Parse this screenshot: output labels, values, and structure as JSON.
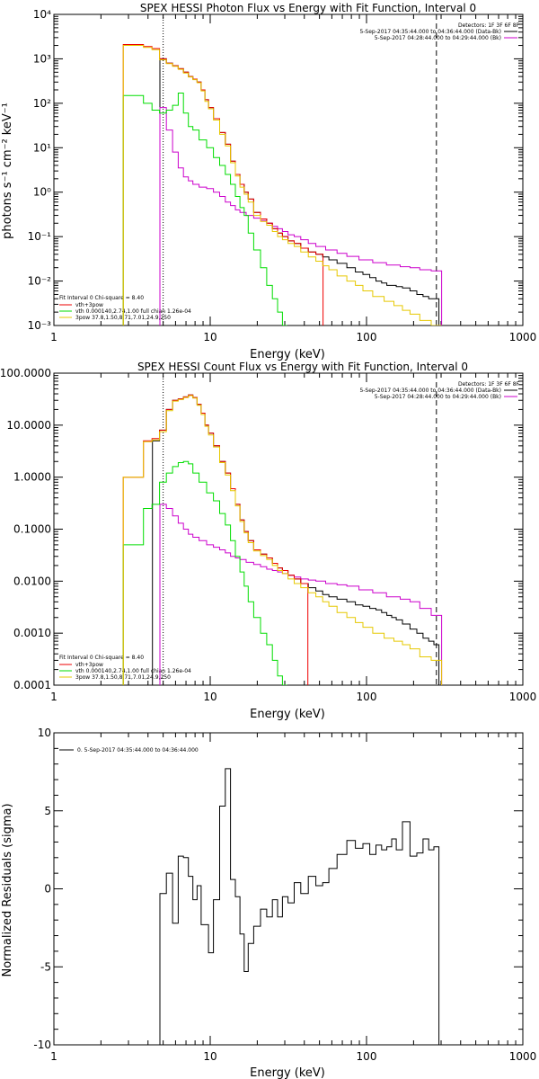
{
  "chart_data": [
    {
      "type": "line",
      "title": "SPEX HESSI Photon Flux vs Energy with Fit Function, Interval 0",
      "xlabel": "Energy (keV)",
      "ylabel": "photons s⁻¹ cm⁻² keV⁻¹",
      "xscale": "log",
      "yscale": "log",
      "xlim": [
        1,
        1000
      ],
      "ylim": [
        0.001,
        10000
      ],
      "xticks": [
        "1",
        "10",
        "100",
        "1000"
      ],
      "yticks": [
        "10⁻³",
        "10⁻²",
        "10⁻¹",
        "10⁰",
        "10¹",
        "10²",
        "10³",
        "10⁴"
      ],
      "vlines": [
        {
          "x": 5,
          "style": "dotted"
        },
        {
          "x": 280,
          "style": "dashed"
        }
      ],
      "legend_topright": [
        "Detectors: 1F 3F 6F 8F",
        "5-Sep-2017 04:35:44.000 to 04:36:44.000 (Data-Bk)",
        "5-Sep-2017 04:28:44.000 to 04:29:44.000 (Bk)"
      ],
      "legend_bottomleft": [
        "Fit Interval 0   Chi-square = 8.40",
        "vth+3pow",
        "vth 0.000140,2.74,1.00  full chian 1.26e-04",
        "3pow 37.8,1.50,8.71,7.01,24.9,250"
      ],
      "series": [
        {
          "name": "Data-Bk",
          "color": "#000000",
          "x": [
            5,
            5.5,
            6,
            6.5,
            7,
            7.5,
            8,
            8.5,
            9,
            9.5,
            10,
            11,
            12,
            13,
            14,
            15,
            16,
            17,
            18,
            20,
            22,
            24,
            26,
            28,
            30,
            33,
            36,
            40,
            45,
            50,
            55,
            60,
            70,
            80,
            90,
            100,
            110,
            120,
            130,
            140,
            150,
            160,
            180,
            200,
            220,
            240,
            260,
            280
          ],
          "values": [
            1000,
            800,
            700,
            600,
            500,
            400,
            350,
            300,
            200,
            120,
            80,
            45,
            22,
            12,
            5,
            2.5,
            1.5,
            1.0,
            0.7,
            0.35,
            0.25,
            0.2,
            0.15,
            0.12,
            0.1,
            0.08,
            0.07,
            0.055,
            0.045,
            0.04,
            0.035,
            0.03,
            0.025,
            0.02,
            0.016,
            0.014,
            0.012,
            0.01,
            0.009,
            0.008,
            0.008,
            0.0075,
            0.007,
            0.006,
            0.005,
            0.0045,
            0.004,
            0.004
          ]
        },
        {
          "name": "Bk",
          "color": "#cc00cc",
          "x": [
            5,
            5.5,
            6,
            6.5,
            7,
            7.5,
            8,
            9,
            10,
            11,
            12,
            13,
            14,
            15,
            16,
            18,
            20,
            22,
            24,
            26,
            28,
            30,
            33,
            36,
            40,
            45,
            50,
            60,
            70,
            80,
            100,
            120,
            150,
            180,
            200,
            240,
            280
          ],
          "values": [
            80,
            25,
            8,
            3.5,
            2.2,
            1.8,
            1.5,
            1.3,
            1.2,
            1.0,
            0.8,
            0.6,
            0.5,
            0.4,
            0.35,
            0.3,
            0.26,
            0.23,
            0.2,
            0.17,
            0.15,
            0.13,
            0.11,
            0.1,
            0.085,
            0.07,
            0.06,
            0.05,
            0.042,
            0.036,
            0.03,
            0.026,
            0.023,
            0.021,
            0.02,
            0.018,
            0.017
          ]
        },
        {
          "name": "vth+3pow",
          "color": "#ee0000",
          "x": [
            3,
            3.5,
            4,
            4.5,
            5,
            5.5,
            6,
            6.5,
            7,
            7.5,
            8,
            8.5,
            9,
            9.5,
            10,
            11,
            12,
            13,
            14,
            15,
            16,
            17,
            18,
            20,
            22,
            24,
            26,
            28,
            30,
            33,
            36,
            40,
            45,
            50
          ],
          "values": [
            2100,
            2100,
            1900,
            1700,
            1000,
            800,
            700,
            600,
            500,
            400,
            350,
            300,
            200,
            120,
            80,
            45,
            22,
            12,
            5,
            2.5,
            1.5,
            1.0,
            0.7,
            0.35,
            0.25,
            0.2,
            0.15,
            0.12,
            0.1,
            0.08,
            0.07,
            0.055,
            0.045,
            0.04
          ]
        },
        {
          "name": "vth",
          "color": "#00dd00",
          "x": [
            3,
            3.5,
            4,
            4.5,
            5,
            5.5,
            6,
            6.5,
            7,
            7.5,
            8,
            9,
            10,
            11,
            12,
            13,
            14,
            15,
            16,
            17,
            18,
            20,
            22,
            24,
            26,
            28,
            30
          ],
          "values": [
            150,
            150,
            100,
            70,
            60,
            70,
            90,
            170,
            60,
            30,
            25,
            15,
            10,
            6,
            4,
            2.5,
            1.5,
            0.8,
            0.45,
            0.3,
            0.12,
            0.05,
            0.02,
            0.008,
            0.004,
            0.002,
            0.001
          ]
        },
        {
          "name": "3pow",
          "color": "#e6c800",
          "x": [
            3,
            3.5,
            4,
            4.5,
            5,
            5.5,
            6,
            6.5,
            7,
            7.5,
            8,
            8.5,
            9,
            9.5,
            10,
            11,
            12,
            13,
            14,
            15,
            16,
            17,
            18,
            20,
            22,
            24,
            26,
            28,
            30,
            33,
            36,
            40,
            45,
            50,
            55,
            60,
            70,
            80,
            90,
            100,
            120,
            140,
            160,
            180,
            200,
            240,
            280
          ],
          "values": [
            2000,
            2000,
            1800,
            1600,
            950,
            780,
            680,
            580,
            480,
            390,
            340,
            290,
            190,
            110,
            75,
            42,
            20,
            11,
            4.6,
            2.3,
            1.3,
            0.9,
            0.6,
            0.3,
            0.22,
            0.18,
            0.13,
            0.1,
            0.085,
            0.07,
            0.06,
            0.045,
            0.035,
            0.028,
            0.022,
            0.018,
            0.013,
            0.01,
            0.008,
            0.006,
            0.0045,
            0.0035,
            0.0028,
            0.0022,
            0.0018,
            0.0013,
            0.001
          ]
        }
      ]
    },
    {
      "type": "line",
      "title": "SPEX HESSI Count Flux vs Energy with Fit Function, Interval 0",
      "xlabel": "Energy (keV)",
      "ylabel": "",
      "xscale": "log",
      "yscale": "log",
      "xlim": [
        1,
        1000
      ],
      "ylim": [
        0.0001,
        100
      ],
      "xticks": [
        "1",
        "10",
        "100",
        "1000"
      ],
      "yticks": [
        "0.0001",
        "0.0010",
        "0.0100",
        "0.1000",
        "1.0000",
        "10.0000",
        "100.0000"
      ],
      "vlines": [
        {
          "x": 5,
          "style": "dotted"
        },
        {
          "x": 280,
          "style": "dashed"
        }
      ],
      "legend_topright": [
        "Detectors: 1F 3F 6F 8F",
        "5-Sep-2017 04:35:44.000 to 04:36:44.000 (Data-Bk)",
        "5-Sep-2017 04:28:44.000 to 04:29:44.000 (Bk)"
      ],
      "legend_bottomleft": [
        "Fit Interval 0   Chi-square = 8.40",
        "vth+3pow",
        "vth 0.000140,2.74,1.00  full chian 1.26e-04",
        "3pow 37.8,1.50,8.71,7.01,24.9,250"
      ],
      "series": [
        {
          "name": "Data-Bk",
          "color": "#000000",
          "x": [
            4.5,
            5,
            5.5,
            6,
            6.5,
            7,
            7.5,
            8,
            8.5,
            9,
            9.5,
            10,
            11,
            12,
            13,
            14,
            15,
            16,
            17,
            18,
            20,
            22,
            24,
            26,
            28,
            30,
            33,
            36,
            40,
            45,
            50,
            55,
            60,
            70,
            80,
            90,
            100,
            110,
            120,
            130,
            140,
            150,
            160,
            180,
            200,
            220,
            240,
            260,
            280
          ],
          "values": [
            5,
            8,
            20,
            30,
            32,
            35,
            38,
            34,
            25,
            17,
            10,
            7,
            4,
            2,
            1.2,
            0.6,
            0.3,
            0.15,
            0.09,
            0.06,
            0.04,
            0.033,
            0.028,
            0.022,
            0.018,
            0.016,
            0.013,
            0.011,
            0.009,
            0.0075,
            0.0065,
            0.0055,
            0.005,
            0.0045,
            0.004,
            0.0035,
            0.0033,
            0.003,
            0.0028,
            0.0025,
            0.0022,
            0.002,
            0.0018,
            0.0015,
            0.0012,
            0.001,
            0.0008,
            0.0007,
            0.0006
          ]
        },
        {
          "name": "Bk",
          "color": "#cc00cc",
          "x": [
            5,
            5.5,
            6,
            6.5,
            7,
            7.5,
            8,
            9,
            10,
            11,
            12,
            13,
            14,
            15,
            16,
            18,
            20,
            22,
            24,
            26,
            28,
            30,
            33,
            36,
            40,
            45,
            50,
            60,
            70,
            80,
            100,
            120,
            150,
            180,
            200,
            240,
            280
          ],
          "values": [
            0.3,
            0.25,
            0.18,
            0.13,
            0.1,
            0.08,
            0.07,
            0.06,
            0.05,
            0.045,
            0.04,
            0.035,
            0.03,
            0.028,
            0.026,
            0.023,
            0.021,
            0.019,
            0.017,
            0.016,
            0.015,
            0.014,
            0.013,
            0.012,
            0.011,
            0.0105,
            0.01,
            0.009,
            0.0085,
            0.008,
            0.0068,
            0.006,
            0.005,
            0.0045,
            0.004,
            0.003,
            0.0022
          ]
        },
        {
          "name": "vth+3pow",
          "color": "#ee0000",
          "x": [
            3,
            3.5,
            4,
            4.5,
            5,
            5.5,
            6,
            6.5,
            7,
            7.5,
            8,
            8.5,
            9,
            9.5,
            10,
            11,
            12,
            13,
            14,
            15,
            16,
            17,
            18,
            20,
            22,
            24,
            26,
            28,
            30,
            33,
            36,
            40
          ],
          "values": [
            1.0,
            1.0,
            5.0,
            5.5,
            8,
            20,
            30,
            32,
            35,
            38,
            34,
            25,
            17,
            10,
            7,
            4,
            2,
            1.2,
            0.6,
            0.3,
            0.15,
            0.09,
            0.06,
            0.04,
            0.033,
            0.028,
            0.022,
            0.018,
            0.016,
            0.013,
            0.011,
            0.009
          ]
        },
        {
          "name": "vth",
          "color": "#00dd00",
          "x": [
            3,
            3.5,
            4,
            4.5,
            5,
            5.5,
            6,
            6.5,
            7,
            7.5,
            8,
            9,
            10,
            11,
            12,
            13,
            14,
            15,
            16,
            17,
            18,
            20,
            22,
            24,
            26,
            28,
            30
          ],
          "values": [
            0.05,
            0.05,
            0.25,
            0.3,
            0.8,
            1.2,
            1.6,
            1.9,
            2.0,
            1.8,
            1.2,
            0.8,
            0.5,
            0.35,
            0.2,
            0.12,
            0.06,
            0.03,
            0.015,
            0.008,
            0.004,
            0.002,
            0.001,
            0.0006,
            0.0003,
            0.00015,
            0.0001
          ]
        },
        {
          "name": "3pow",
          "color": "#e6c800",
          "x": [
            3,
            3.5,
            4,
            4.5,
            5,
            5.5,
            6,
            6.5,
            7,
            7.5,
            8,
            8.5,
            9,
            9.5,
            10,
            11,
            12,
            13,
            14,
            15,
            16,
            17,
            18,
            20,
            22,
            24,
            26,
            28,
            30,
            33,
            36,
            40,
            45,
            50,
            55,
            60,
            70,
            80,
            90,
            100,
            120,
            140,
            160,
            180,
            200,
            240,
            280
          ],
          "values": [
            1.0,
            1.0,
            4.8,
            5.2,
            7.5,
            19,
            29,
            31,
            34,
            37,
            33,
            24,
            16,
            9.5,
            6.5,
            3.8,
            1.9,
            1.1,
            0.55,
            0.28,
            0.14,
            0.085,
            0.055,
            0.038,
            0.031,
            0.026,
            0.02,
            0.016,
            0.014,
            0.011,
            0.009,
            0.0075,
            0.006,
            0.005,
            0.004,
            0.0033,
            0.0025,
            0.002,
            0.0016,
            0.0013,
            0.001,
            0.0008,
            0.0007,
            0.0006,
            0.0005,
            0.00035,
            0.0003
          ]
        }
      ]
    },
    {
      "type": "line",
      "title": "",
      "xlabel": "Energy (keV)",
      "ylabel": "Normalized Residuals (sigma)",
      "xscale": "log",
      "yscale": "linear",
      "xlim": [
        1,
        1000
      ],
      "ylim": [
        -10,
        10
      ],
      "xticks": [
        "1",
        "10",
        "100",
        "1000"
      ],
      "yticks": [
        "-10",
        "-5",
        "0",
        "5",
        "10"
      ],
      "legend_topleft": [
        "0. 5-Sep-2017 04:35:44.000 to 04:36:44.000"
      ],
      "series": [
        {
          "name": "0. 5-Sep-2017 04:35:44.000 to 04:36:44.000",
          "color": "#000000",
          "x": [
            5,
            5.5,
            6,
            6.5,
            7,
            7.5,
            8,
            8.5,
            9,
            9.5,
            10,
            11,
            12,
            13,
            14,
            15,
            16,
            17,
            18,
            20,
            22,
            24,
            26,
            28,
            30,
            33,
            36,
            40,
            45,
            50,
            55,
            60,
            70,
            80,
            90,
            100,
            110,
            120,
            130,
            140,
            150,
            160,
            180,
            200,
            220,
            240,
            260,
            280
          ],
          "values": [
            -0.3,
            1.0,
            -2.2,
            2.1,
            2.0,
            0.8,
            -0.7,
            0.2,
            -2.3,
            -2.3,
            -4.1,
            -0.7,
            5.3,
            7.7,
            0.6,
            -0.5,
            -2.9,
            -5.3,
            -3.5,
            -2.4,
            -1.3,
            -1.8,
            -0.7,
            -1.8,
            -0.5,
            -0.9,
            0.4,
            -0.3,
            0.8,
            0.2,
            0.4,
            1.3,
            2.2,
            3.1,
            2.6,
            2.9,
            2.2,
            2.8,
            2.5,
            2.7,
            3.2,
            2.5,
            4.3,
            2.1,
            2.3,
            3.2,
            2.5,
            2.7
          ]
        }
      ]
    }
  ]
}
